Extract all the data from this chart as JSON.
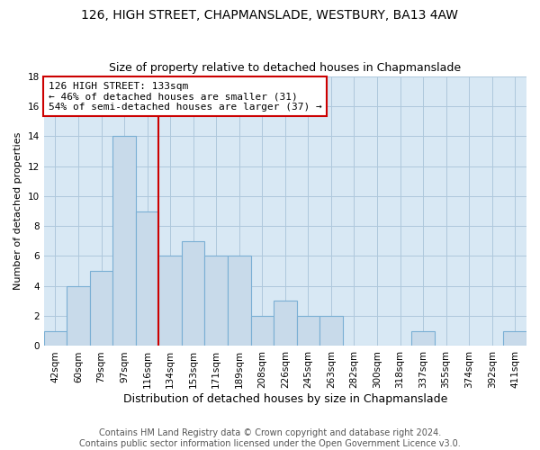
{
  "title": "126, HIGH STREET, CHAPMANSLADE, WESTBURY, BA13 4AW",
  "subtitle": "Size of property relative to detached houses in Chapmanslade",
  "xlabel": "Distribution of detached houses by size in Chapmanslade",
  "ylabel": "Number of detached properties",
  "categories": [
    "42sqm",
    "60sqm",
    "79sqm",
    "97sqm",
    "116sqm",
    "134sqm",
    "153sqm",
    "171sqm",
    "189sqm",
    "208sqm",
    "226sqm",
    "245sqm",
    "263sqm",
    "282sqm",
    "300sqm",
    "318sqm",
    "337sqm",
    "355sqm",
    "374sqm",
    "392sqm",
    "411sqm"
  ],
  "values": [
    1,
    4,
    5,
    14,
    9,
    6,
    7,
    6,
    6,
    2,
    3,
    2,
    2,
    0,
    0,
    0,
    1,
    0,
    0,
    0,
    1
  ],
  "bar_color": "#c8daea",
  "bar_edgecolor": "#7aafd4",
  "vline_color": "#cc0000",
  "vline_position": 4.5,
  "annotation_line1": "126 HIGH STREET: 133sqm",
  "annotation_line2": "← 46% of detached houses are smaller (31)",
  "annotation_line3": "54% of semi-detached houses are larger (37) →",
  "annotation_box_color": "#cc0000",
  "ylim": [
    0,
    18
  ],
  "yticks": [
    0,
    2,
    4,
    6,
    8,
    10,
    12,
    14,
    16,
    18
  ],
  "grid_color": "#aec8dc",
  "background_color": "#d8e8f4",
  "footer_line1": "Contains HM Land Registry data © Crown copyright and database right 2024.",
  "footer_line2": "Contains public sector information licensed under the Open Government Licence v3.0.",
  "title_fontsize": 10,
  "subtitle_fontsize": 9,
  "xlabel_fontsize": 9,
  "ylabel_fontsize": 8,
  "tick_fontsize": 7.5,
  "annotation_fontsize": 8,
  "footer_fontsize": 7
}
